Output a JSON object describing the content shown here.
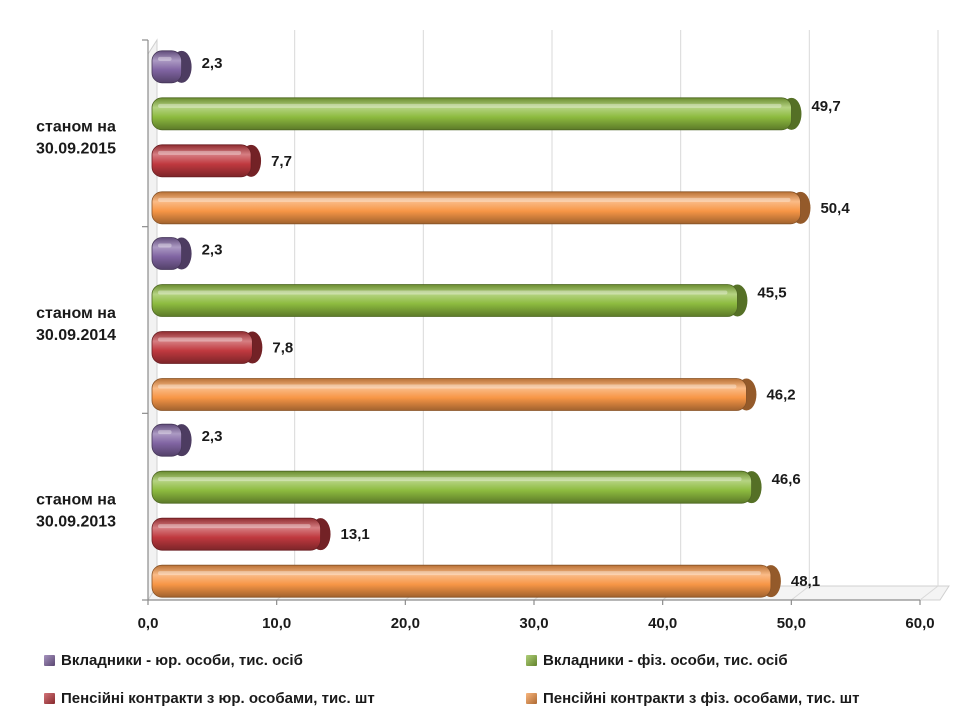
{
  "chart_data": {
    "type": "bar",
    "orientation": "horizontal",
    "categories": [
      "станом на 30.09.2015",
      "станом на 30.09.2014",
      "станом на 30.09.2013"
    ],
    "category_lines": [
      [
        "станом на",
        "30.09.2015"
      ],
      [
        "станом на",
        "30.09.2014"
      ],
      [
        "станом на",
        "30.09.2013"
      ]
    ],
    "series": [
      {
        "name": "Вкладники - юр. особи, тис. осіб",
        "color": "#8064a2",
        "values": [
          2.3,
          2.3,
          2.3
        ],
        "labels": [
          "2,3",
          "2,3",
          "2,3"
        ]
      },
      {
        "name": "Вкладники - фіз. особи, тис. осіб",
        "color": "#8dbb3f",
        "values": [
          49.7,
          45.5,
          46.6
        ],
        "labels": [
          "49,7",
          "45,5",
          "46,6"
        ]
      },
      {
        "name": "Пенсійні контракти з юр. особами, тис. шт",
        "color": "#c0393f",
        "values": [
          7.7,
          7.8,
          13.1
        ],
        "labels": [
          "7,7",
          "7,8",
          "13,1"
        ]
      },
      {
        "name": "Пенсійні контракти з фіз. особами, тис. шт",
        "color": "#f79646",
        "values": [
          50.4,
          46.2,
          48.1
        ],
        "labels": [
          "50,4",
          "46,2",
          "48,1"
        ]
      }
    ],
    "xlim": [
      0,
      60
    ],
    "xticks": [
      0,
      10,
      20,
      30,
      40,
      50,
      60
    ],
    "xtick_labels": [
      "0,0",
      "10,0",
      "20,0",
      "30,0",
      "40,0",
      "50,0",
      "60,0"
    ],
    "grid": true,
    "legend_position": "bottom"
  }
}
